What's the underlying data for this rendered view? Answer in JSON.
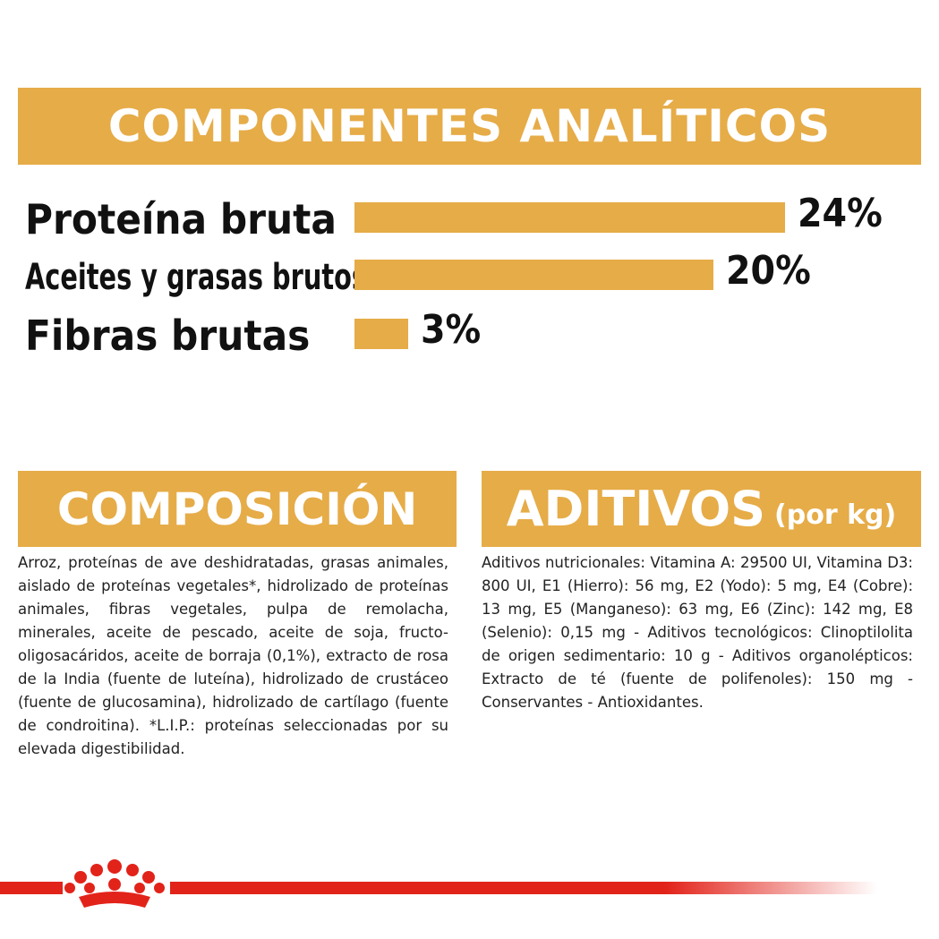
{
  "header": {
    "title": "COMPONENTES ANALÍTICOS"
  },
  "chart_data": {
    "type": "bar",
    "categories": [
      "Proteína bruta",
      "Aceites y grasas brutos",
      "Fibras brutas"
    ],
    "values": [
      24,
      20,
      3
    ],
    "value_labels": [
      "24%",
      "20%",
      "3%"
    ],
    "color": "#E6AC48"
  },
  "composicion": {
    "title": "COMPOSICIÓN",
    "text": "Arroz, proteínas de ave deshidratadas, grasas animales, aislado de proteínas vegetales*, hidrolizado de proteínas animales, fibras vegetales, pulpa de remolacha, minerales, aceite de pescado, aceite de soja, fructo-oligosacáridos, aceite de borraja (0,1%), extracto de rosa de la India (fuente de luteína), hidrolizado de crustáceo (fuente de glucosamina), hidrolizado de cartílago (fuente de condroitina). *L.I.P.: proteínas seleccionadas por su elevada digestibilidad."
  },
  "aditivos": {
    "title": "ADITIVOS",
    "unit": "(por kg)",
    "text": "Aditivos nutricionales: Vitamina A: 29500 UI, Vitamina D3: 800 UI, E1 (Hierro): 56 mg, E2 (Yodo): 5 mg, E4 (Cobre): 13 mg, E5 (Manganeso): 63 mg, E6 (Zinc): 142 mg, E8 (Selenio): 0,15 mg - Aditivos tecnológicos: Clinoptilolita de origen sedimentario: 10 g - Aditivos organolépticos: Extracto de té (fuente de polifenoles): 150 mg - Conservantes - Antioxidantes."
  }
}
